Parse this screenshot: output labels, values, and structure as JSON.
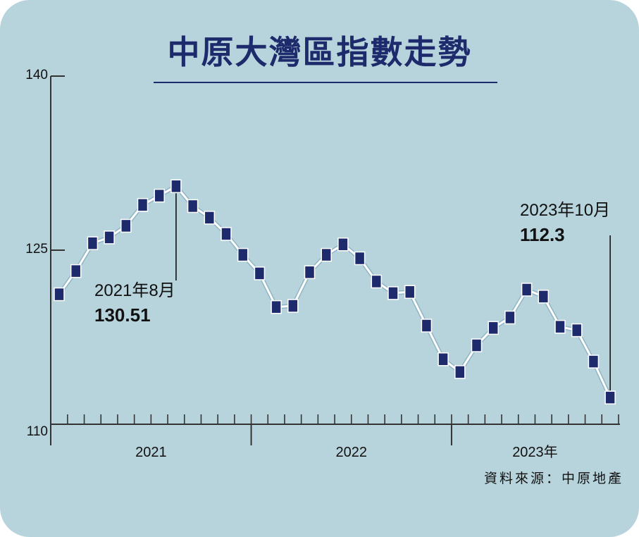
{
  "title": "中原大灣區指數走勢",
  "source": "資料來源：中原地產",
  "colors": {
    "background": "#b7d4dc",
    "marker": "#1d2a6b",
    "line": "#ffffff",
    "axis": "#333333"
  },
  "chart_data": {
    "type": "line",
    "title": "中原大灣區指數走勢",
    "xlabel": "",
    "ylabel": "",
    "ylim": [
      110,
      140
    ],
    "yticks": [
      110,
      125,
      140
    ],
    "grid": false,
    "years": [
      {
        "label": "2021",
        "start_index": 0,
        "count": 12
      },
      {
        "label": "2022",
        "start_index": 12,
        "count": 12
      },
      {
        "label": "2023年",
        "start_index": 24,
        "count": 10
      }
    ],
    "series": [
      {
        "name": "",
        "x": [
          "2021-01",
          "2021-02",
          "2021-03",
          "2021-04",
          "2021-05",
          "2021-06",
          "2021-07",
          "2021-08",
          "2021-09",
          "2021-10",
          "2021-11",
          "2021-12",
          "2022-01",
          "2022-02",
          "2022-03",
          "2022-04",
          "2022-05",
          "2022-06",
          "2022-07",
          "2022-08",
          "2022-09",
          "2022-10",
          "2022-11",
          "2022-12",
          "2023-01",
          "2023-02",
          "2023-03",
          "2023-04",
          "2023-05",
          "2023-06",
          "2023-07",
          "2023-08",
          "2023-09",
          "2023-10"
        ],
        "values": [
          121.2,
          123.2,
          125.6,
          126.1,
          127.1,
          128.9,
          129.7,
          130.51,
          128.8,
          127.8,
          126.4,
          124.6,
          123.0,
          120.1,
          120.2,
          123.1,
          124.6,
          125.5,
          124.3,
          122.3,
          121.3,
          121.4,
          118.5,
          115.6,
          114.5,
          116.8,
          118.3,
          119.2,
          121.6,
          121.0,
          118.4,
          118.1,
          115.4,
          112.3
        ]
      }
    ],
    "annotations": [
      {
        "x": "2021-08",
        "label": "2021年8月",
        "value": "130.51"
      },
      {
        "x": "2023-10",
        "label": "2023年10月",
        "value": "112.3"
      }
    ]
  }
}
